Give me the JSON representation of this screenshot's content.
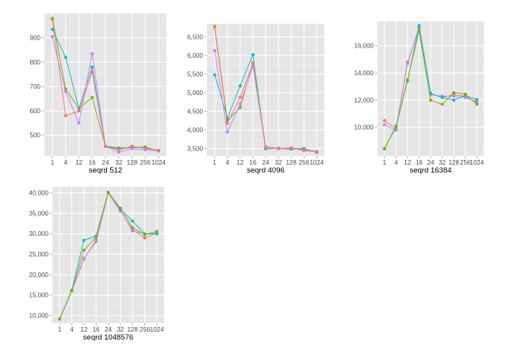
{
  "chart_data": [
    {
      "type": "line",
      "xlabel": "seqrd 512",
      "x": [
        "1",
        "4",
        "12",
        "16",
        "24",
        "32",
        "128",
        "256",
        "1024"
      ],
      "yticks": [
        500,
        600,
        700,
        800,
        900
      ],
      "ytick_labels": [
        "500",
        "600",
        "700",
        "800",
        "900"
      ],
      "ylim": [
        415,
        1000
      ],
      "grid": true,
      "series": [
        {
          "color": "#7CAE00",
          "values": [
            980,
            690,
            610,
            655,
            455,
            448,
            450,
            452,
            435
          ]
        },
        {
          "color": "#00BFC4",
          "values": [
            935,
            820,
            610,
            780,
            455,
            445,
            450,
            448,
            438
          ]
        },
        {
          "color": "#C77CFF",
          "values": [
            905,
            680,
            550,
            835,
            455,
            430,
            445,
            440,
            435
          ]
        },
        {
          "color": "#F8766D",
          "values": [
            975,
            580,
            600,
            760,
            453,
            440,
            455,
            445,
            438
          ]
        }
      ]
    },
    {
      "type": "line",
      "xlabel": "seqrd 4096",
      "x": [
        "1",
        "4",
        "12",
        "16",
        "24",
        "32",
        "128",
        "256",
        "1024"
      ],
      "yticks": [
        3500,
        4000,
        4500,
        5000,
        5500,
        6000,
        6500
      ],
      "ytick_labels": [
        "3,500",
        "4,000",
        "4,500",
        "5,000",
        "5,500",
        "6,000",
        "6,500"
      ],
      "ylim": [
        3300,
        6850
      ],
      "grid": true,
      "series": [
        {
          "color": "#7CAE00",
          "values": [
            6780,
            4250,
            4600,
            5800,
            3500,
            3500,
            3480,
            3500,
            3400
          ]
        },
        {
          "color": "#00BFC4",
          "values": [
            5480,
            4320,
            5180,
            6020,
            3490,
            3510,
            3490,
            3500,
            3390
          ]
        },
        {
          "color": "#C77CFF",
          "values": [
            6130,
            3940,
            4700,
            5720,
            3520,
            3490,
            3510,
            3440,
            3410
          ]
        },
        {
          "color": "#F8766D",
          "values": [
            6750,
            4180,
            4880,
            5780,
            3550,
            3500,
            3520,
            3460,
            3420
          ]
        }
      ]
    },
    {
      "type": "line",
      "xlabel": "seqrd 16384",
      "x": [
        "1",
        "4",
        "12",
        "16",
        "24",
        "32",
        "128",
        "256",
        "1024"
      ],
      "yticks": [
        10000,
        12000,
        14000,
        16000
      ],
      "ytick_labels": [
        "10,000",
        "12,000",
        "14,000",
        "16,000"
      ],
      "ylim": [
        7900,
        17800
      ],
      "grid": true,
      "series": [
        {
          "color": "#F8766D",
          "values": [
            10500,
            9900,
            14800,
            17300,
            12500,
            12200,
            12400,
            12300,
            11800
          ]
        },
        {
          "color": "#C77CFF",
          "values": [
            10200,
            9800,
            14700,
            17400,
            12400,
            12300,
            12300,
            12200,
            11900
          ]
        },
        {
          "color": "#00BFC4",
          "values": [
            8400,
            10100,
            13400,
            17500,
            12500,
            12200,
            12000,
            12350,
            12050
          ]
        },
        {
          "color": "#7CAE00",
          "values": [
            8450,
            10000,
            13500,
            17100,
            12000,
            11700,
            12550,
            12450,
            11700
          ]
        }
      ]
    },
    {
      "type": "line",
      "xlabel": "seqrd 1048576",
      "x": [
        "1",
        "4",
        "12",
        "16",
        "24",
        "32",
        "128",
        "256",
        "1024"
      ],
      "yticks": [
        10000,
        15000,
        20000,
        25000,
        30000,
        35000,
        40000
      ],
      "ytick_labels": [
        "10,000",
        "15,000",
        "20,000",
        "25,000",
        "30,000",
        "35,000",
        "40,000"
      ],
      "ylim": [
        8200,
        41500
      ],
      "grid": true,
      "series": [
        {
          "color": "#F8766D",
          "values": [
            9200,
            16100,
            24000,
            28100,
            40000,
            35500,
            31000,
            29000,
            30200
          ]
        },
        {
          "color": "#C77CFF",
          "values": [
            9100,
            16000,
            23800,
            28500,
            40100,
            35600,
            30700,
            30000,
            30100
          ]
        },
        {
          "color": "#00BFC4",
          "values": [
            9200,
            16200,
            28400,
            29500,
            40200,
            36000,
            33100,
            30000,
            30000
          ]
        },
        {
          "color": "#7CAE00",
          "values": [
            9150,
            16100,
            26000,
            29200,
            40100,
            36300,
            31500,
            29800,
            30600
          ]
        }
      ]
    }
  ]
}
